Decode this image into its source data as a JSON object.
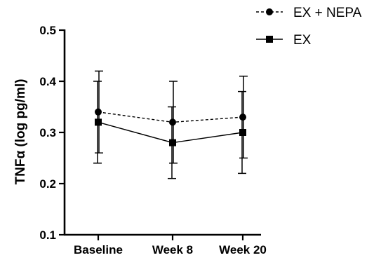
{
  "chart_data": {
    "type": "line",
    "categories": [
      "Baseline",
      "Week 8",
      "Week 20"
    ],
    "ylabel": "TNFα (log pg/ml)",
    "xlabel": "",
    "title": "",
    "ylim": [
      0.1,
      0.5
    ],
    "yticks": [
      "0.1",
      "0.2",
      "0.3",
      "0.4",
      "0.5"
    ],
    "legend_position": "top-right",
    "series": [
      {
        "name": "EX + NEPA",
        "values": [
          0.34,
          0.32,
          0.33
        ],
        "error_low": [
          0.26,
          0.24,
          0.25
        ],
        "error_high": [
          0.42,
          0.4,
          0.41
        ],
        "marker": "circle",
        "line_style": "dashed",
        "color": "#000000"
      },
      {
        "name": "EX",
        "values": [
          0.32,
          0.28,
          0.3
        ],
        "error_low": [
          0.24,
          0.21,
          0.22
        ],
        "error_high": [
          0.4,
          0.35,
          0.38
        ],
        "marker": "square",
        "line_style": "solid",
        "color": "#000000"
      }
    ]
  }
}
